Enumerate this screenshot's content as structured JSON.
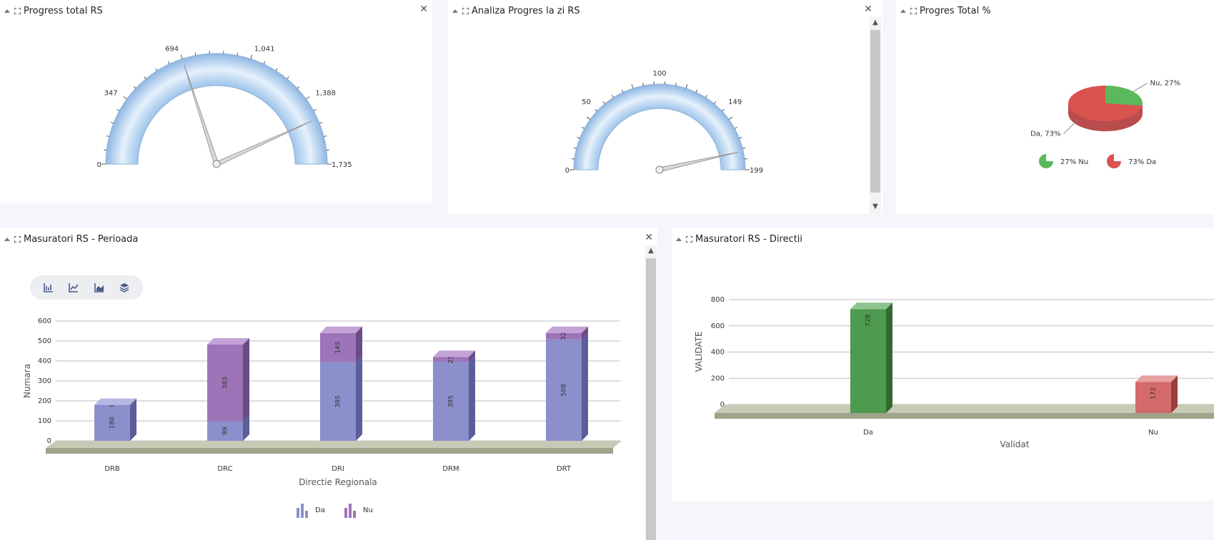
{
  "panels": {
    "progress_total": {
      "title": "Progress total RS",
      "gauge": {
        "min": 0,
        "max": 1735,
        "tick_labels": [
          "0",
          "347",
          "694",
          "1,041",
          "1,388",
          "1,735"
        ],
        "needle_values": [
          694,
          1500
        ]
      }
    },
    "progres_zi": {
      "title": "Analiza Progres la zi RS",
      "gauge": {
        "min": 0,
        "max": 199,
        "tick_labels": [
          "0",
          "50",
          "100",
          "149",
          "199"
        ],
        "needle_values": [
          185
        ]
      }
    },
    "progres_procent": {
      "title": "Progres Total %",
      "pie": {
        "slices": [
          {
            "label": "Nu",
            "percent": 27,
            "color": "#5cb85c",
            "callout": "Nu, 27%",
            "legend": "27% Nu"
          },
          {
            "label": "Da",
            "percent": 73,
            "color": "#d9534f",
            "callout": "Da, 73%",
            "legend": "73% Da"
          }
        ]
      }
    },
    "masuratori_perioada": {
      "title": "Masuratori RS - Perioada",
      "toolbar_icons": [
        "bar-chart-icon",
        "line-chart-icon",
        "area-chart-icon",
        "stacked-layers-icon"
      ],
      "legend": [
        "Da",
        "Nu"
      ]
    },
    "masuratori_directii": {
      "title": "Masuratori RS - Directii"
    }
  },
  "chart_data": [
    {
      "type": "bar",
      "stacked": true,
      "categories": [
        "DRB",
        "DRC",
        "DRI",
        "DRM",
        "DRT"
      ],
      "series": [
        {
          "name": "Da",
          "values": [
            180,
            99,
            395,
            395,
            508
          ],
          "color": "#8b8fcb"
        },
        {
          "name": "Nu",
          "values": [
            0,
            383,
            145,
            25,
            32
          ],
          "color": "#9d74b8"
        }
      ],
      "xlabel": "Directie Regionala",
      "ylabel": "Numara",
      "ylim": [
        0,
        600
      ],
      "yticks": [
        0,
        100,
        200,
        300,
        400,
        500,
        600
      ],
      "grid": true,
      "legend_position": "bottom"
    },
    {
      "type": "bar",
      "categories": [
        "Da",
        "Nu"
      ],
      "values": [
        728,
        172
      ],
      "colors": [
        "#4e9a4e",
        "#d46a6a"
      ],
      "xlabel": "Validat",
      "ylabel": "VALIDATE",
      "ylim": [
        0,
        800
      ],
      "yticks": [
        0,
        200,
        400,
        600,
        800
      ],
      "grid": true
    }
  ]
}
